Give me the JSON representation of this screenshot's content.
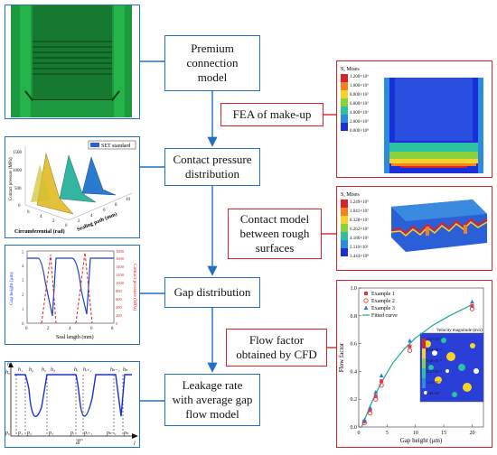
{
  "steps": [
    {
      "label_lines": [
        "Premium",
        "connection",
        "model"
      ]
    },
    {
      "label_lines": [
        "Contact pressure",
        "distribution"
      ]
    },
    {
      "label_lines": [
        "Gap distribution"
      ]
    },
    {
      "label_lines": [
        "Leakage rate",
        "with average gap",
        "flow model"
      ]
    }
  ],
  "side_steps": [
    {
      "label_lines": [
        "FEA of make-up"
      ]
    },
    {
      "label_lines": [
        "Contact model",
        "between rough",
        "surfaces"
      ]
    },
    {
      "label_lines": [
        "Flow factor",
        "obtained by CFD"
      ]
    }
  ],
  "fea_panel": {
    "legend_title": "S, Mises",
    "legend_values": [
      "1.200×10³",
      "1.000×10³",
      "8.000×10²",
      "6.000×10²",
      "4.000×10²",
      "2.000×10²",
      "0.000×10⁰"
    ]
  },
  "rough_panel": {
    "legend_title": "S, Mises",
    "legend_values": [
      "1.249×10³",
      "1.041×10³",
      "8.328×10²",
      "6.262×10²",
      "4.186×10²",
      "2.110×10²",
      "3.444×10⁰"
    ]
  },
  "pressure_plot": {
    "legend": "SET standard",
    "zlabel": "Contact pressure (MPa)",
    "xlabel": "Circumferential (rad)",
    "ylabel": "Sealing path (mm)",
    "z_ticks": [
      "0",
      "500",
      "1000",
      "1500"
    ],
    "x_ticks": [
      "6",
      "4",
      "2",
      "0"
    ],
    "y_ticks": [
      "2",
      "4",
      "6",
      "8",
      "10"
    ]
  },
  "gap_plot": {
    "xlabel": "Seal length (mm)",
    "ylabel_left": "Gap height (μm)",
    "ylabel_right": "Contact pressure (MPa)",
    "x_ticks": [
      "0",
      "2",
      "4",
      "6",
      "8"
    ],
    "y_left_ticks": [
      "0",
      "1",
      "2",
      "3",
      "4",
      "5"
    ],
    "y_right_ticks": [
      "0",
      "200",
      "400",
      "600",
      "800",
      "1000",
      "1200",
      "1400",
      "1600",
      "1800"
    ]
  },
  "schematic": {
    "h_axis": "h",
    "l_axis": "l",
    "h_labels": [
      "h₀",
      "h₁",
      "h₂",
      "h₂",
      "h₃",
      "hᵢ",
      "hᵢ₊₁",
      "hₙ₋₁",
      "hₙ"
    ],
    "p_labels": [
      "p₀",
      "p₁",
      "p₂",
      "p₃",
      "pᵢ",
      "pᵢ₊₁",
      "pₙ₋₁",
      "pₙ"
    ],
    "dl_label": "dl"
  },
  "chart_data": {
    "type": "scatter",
    "xlabel": "Gap height (μm)",
    "ylabel": "Flow factor",
    "xlim": [
      0,
      22
    ],
    "ylim": [
      0,
      1.0
    ],
    "x_ticks": [
      0,
      5,
      10,
      15,
      20
    ],
    "y_ticks": [
      0.0,
      0.2,
      0.4,
      0.6,
      0.8,
      1.0
    ],
    "series": [
      {
        "name": "Example 1",
        "color": "#e83a4a",
        "marker": "square",
        "points": [
          [
            1,
            0.04
          ],
          [
            2,
            0.12
          ],
          [
            3,
            0.22
          ],
          [
            4,
            0.33
          ],
          [
            9,
            0.58
          ],
          [
            20,
            0.87
          ]
        ]
      },
      {
        "name": "Example 2",
        "color": "#e8383d",
        "marker": "circle",
        "points": [
          [
            1,
            0.03
          ],
          [
            2,
            0.1
          ],
          [
            3,
            0.2
          ],
          [
            4,
            0.3
          ],
          [
            9,
            0.55
          ],
          [
            20,
            0.85
          ]
        ]
      },
      {
        "name": "Example 3",
        "color": "#2a7be0",
        "marker": "triangle",
        "points": [
          [
            1,
            0.05
          ],
          [
            2,
            0.14
          ],
          [
            3,
            0.25
          ],
          [
            4,
            0.37
          ],
          [
            9,
            0.62
          ],
          [
            20,
            0.9
          ]
        ]
      }
    ],
    "fitted_curve": {
      "name": "Fitted curve",
      "color": "#16a89a",
      "points": [
        [
          0.5,
          0.0
        ],
        [
          1,
          0.05
        ],
        [
          2,
          0.15
        ],
        [
          3,
          0.24
        ],
        [
          4,
          0.32
        ],
        [
          6,
          0.46
        ],
        [
          8,
          0.56
        ],
        [
          10,
          0.64
        ],
        [
          13,
          0.73
        ],
        [
          16,
          0.8
        ],
        [
          20,
          0.88
        ]
      ]
    },
    "inset": {
      "title": "Velocity magnitude (m/s)",
      "ticks": [
        "5.67×10⁻²",
        "4.54×10⁻²",
        "3.40×10⁻²",
        "2.27×10⁻²",
        "1.13×10⁻²",
        "0.00×10⁰"
      ]
    },
    "legend_position": "top-left"
  }
}
